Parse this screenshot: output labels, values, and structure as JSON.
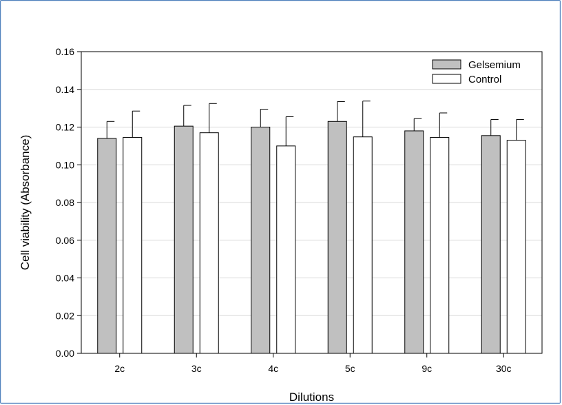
{
  "chart_data": {
    "type": "bar",
    "title": "",
    "xlabel": "Dilutions",
    "ylabel": "Cell viability (Absorbance)",
    "ylim": [
      0,
      0.16
    ],
    "yticks": [
      "0.00",
      "0.02",
      "0.04",
      "0.06",
      "0.08",
      "0.10",
      "0.12",
      "0.14",
      "0.16"
    ],
    "ytick_values": [
      0,
      0.02,
      0.04,
      0.06,
      0.08,
      0.1,
      0.12,
      0.14,
      0.16
    ],
    "grid": true,
    "legend_position": "top-right",
    "categories": [
      "2c",
      "3c",
      "4c",
      "5c",
      "9c",
      "30c"
    ],
    "series": [
      {
        "name": "Gelsemium",
        "color": "#c0c0c0",
        "values": [
          0.114,
          0.1205,
          0.12,
          0.123,
          0.118,
          0.1155
        ],
        "errors": [
          0.009,
          0.011,
          0.0095,
          0.0105,
          0.0065,
          0.0085
        ]
      },
      {
        "name": "Control",
        "color": "#ffffff",
        "values": [
          0.1145,
          0.117,
          0.11,
          0.1148,
          0.1145,
          0.113
        ],
        "errors": [
          0.014,
          0.0155,
          0.0155,
          0.019,
          0.013,
          0.011
        ]
      }
    ]
  }
}
